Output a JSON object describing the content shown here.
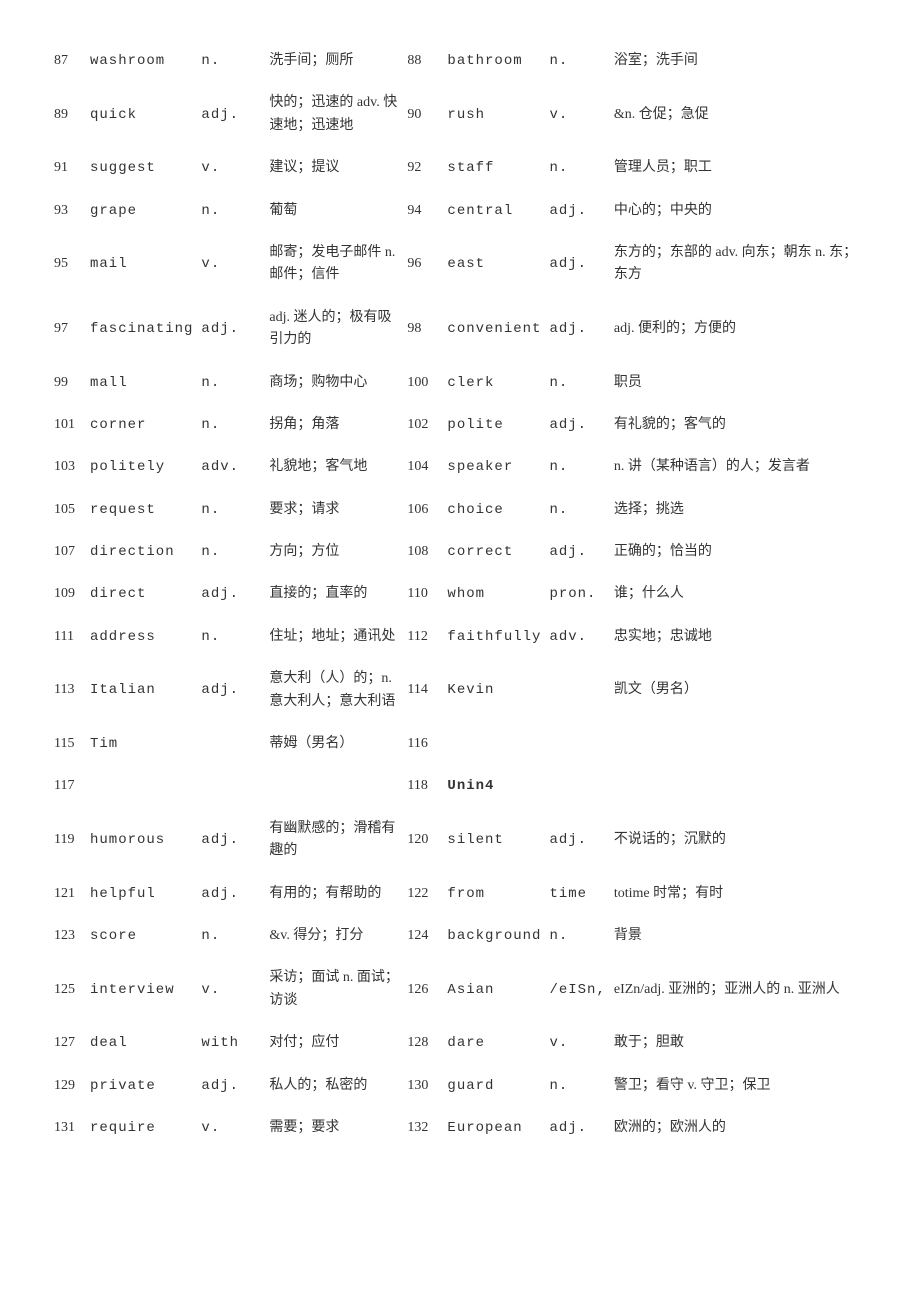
{
  "rows": [
    {
      "ln": "87",
      "lw": "washroom",
      "lp": "n.",
      "ld": "洗手间；厕所",
      "rn": "88",
      "rw": "bathroom",
      "rp": "n.",
      "rd": "浴室；洗手间"
    },
    {
      "ln": "89",
      "lw": "quick",
      "lp": "adj.",
      "ld": "快的；迅速的 adv. 快速地；迅速地",
      "rn": "90",
      "rw": "rush",
      "rp": "v.",
      "rd": "&n. 仓促；急促"
    },
    {
      "ln": "91",
      "lw": "suggest",
      "lp": "v.",
      "ld": "建议；提议",
      "rn": "92",
      "rw": "staff",
      "rp": "n.",
      "rd": "管理人员；职工"
    },
    {
      "ln": "93",
      "lw": "grape",
      "lp": "n.",
      "ld": "葡萄",
      "rn": "94",
      "rw": "central",
      "rp": "adj.",
      "rd": "中心的；中央的"
    },
    {
      "ln": "95",
      "lw": "mail",
      "lp": "v.",
      "ld": "邮寄；发电子邮件 n. 邮件；信件",
      "rn": "96",
      "rw": "east",
      "rp": "adj.",
      "rd": "东方的；东部的 adv. 向东；朝东 n. 东；东方"
    },
    {
      "ln": "97",
      "lw": "fascinating",
      "lp": "adj.",
      "ld": "adj. 迷人的；极有吸引力的",
      "rn": "98",
      "rw": "convenient",
      "rp": "adj.",
      "rd": "adj. 便利的；方便的"
    },
    {
      "ln": "99",
      "lw": "mall",
      "lp": "n.",
      "ld": "商场；购物中心",
      "rn": "100",
      "rw": "clerk",
      "rp": "n.",
      "rd": "职员"
    },
    {
      "ln": "101",
      "lw": "corner",
      "lp": "n.",
      "ld": "拐角；角落",
      "rn": "102",
      "rw": "polite",
      "rp": "adj.",
      "rd": "有礼貌的；客气的"
    },
    {
      "ln": "103",
      "lw": "politely",
      "lp": "adv.",
      "ld": "礼貌地；客气地",
      "rn": "104",
      "rw": "speaker",
      "rp": "n.",
      "rd": "n. 讲（某种语言）的人；发言者"
    },
    {
      "ln": "105",
      "lw": "request",
      "lp": "n.",
      "ld": "要求；请求",
      "rn": "106",
      "rw": "choice",
      "rp": "n.",
      "rd": "选择；挑选"
    },
    {
      "ln": "107",
      "lw": "direction",
      "lp": "n.",
      "ld": "方向；方位",
      "rn": "108",
      "rw": "correct",
      "rp": "adj.",
      "rd": "正确的；恰当的"
    },
    {
      "ln": "109",
      "lw": "direct",
      "lp": "adj.",
      "ld": "直接的；直率的",
      "rn": "110",
      "rw": "whom",
      "rp": "pron.",
      "rd": "谁；什么人"
    },
    {
      "ln": "111",
      "lw": "address",
      "lp": "n.",
      "ld": "住址；地址；通讯处",
      "rn": "112",
      "rw": "faithfully",
      "rp": "adv.",
      "rd": "忠实地；忠诚地"
    },
    {
      "ln": "113",
      "lw": "Italian",
      "lp": "adj.",
      "ld": "意大利（人）的；n. 意大利人；意大利语",
      "rn": "114",
      "rw": "Kevin",
      "rp": "",
      "rd": "凯文（男名）"
    },
    {
      "ln": "115",
      "lw": "Tim",
      "lp": "",
      "ld": "蒂姆（男名）",
      "rn": "116",
      "rw": "",
      "rp": "",
      "rd": ""
    },
    {
      "ln": "117",
      "lw": "",
      "lp": "",
      "ld": "",
      "rn": "118",
      "rw": "Unin4",
      "rp": "",
      "rd": "",
      "rbold": true
    },
    {
      "ln": "119",
      "lw": "humorous",
      "lp": "adj.",
      "ld": "有幽默感的；滑稽有趣的",
      "rn": "120",
      "rw": "silent",
      "rp": "adj.",
      "rd": "不说话的；沉默的"
    },
    {
      "ln": "121",
      "lw": "helpful",
      "lp": "adj.",
      "ld": "有用的；有帮助的",
      "rn": "122",
      "rw": "from",
      "rp": "time",
      "rd": "totime 时常；有时"
    },
    {
      "ln": "123",
      "lw": "score",
      "lp": "n.",
      "ld": "&v. 得分；打分",
      "rn": "124",
      "rw": "background",
      "rp": "n.",
      "rd": "背景"
    },
    {
      "ln": "125",
      "lw": "interview",
      "lp": "v.",
      "ld": "采访；面试 n. 面试；访谈",
      "rn": "126",
      "rw": "Asian",
      "rp": "/eISn,",
      "rd": "eIZn/adj. 亚洲的；亚洲人的 n. 亚洲人"
    },
    {
      "ln": "127",
      "lw": "deal",
      "lp": "with",
      "ld": "对付；应付",
      "rn": "128",
      "rw": "dare",
      "rp": "v.",
      "rd": "敢于；胆敢"
    },
    {
      "ln": "129",
      "lw": "private",
      "lp": "adj.",
      "ld": "私人的；私密的",
      "rn": "130",
      "rw": "guard",
      "rp": "n.",
      "rd": "警卫；看守 v. 守卫；保卫"
    },
    {
      "ln": "131",
      "lw": "require",
      "lp": "v.",
      "ld": "需要；要求",
      "rn": "132",
      "rw": "European",
      "rp": "adj.",
      "rd": "欧洲的；欧洲人的"
    }
  ]
}
